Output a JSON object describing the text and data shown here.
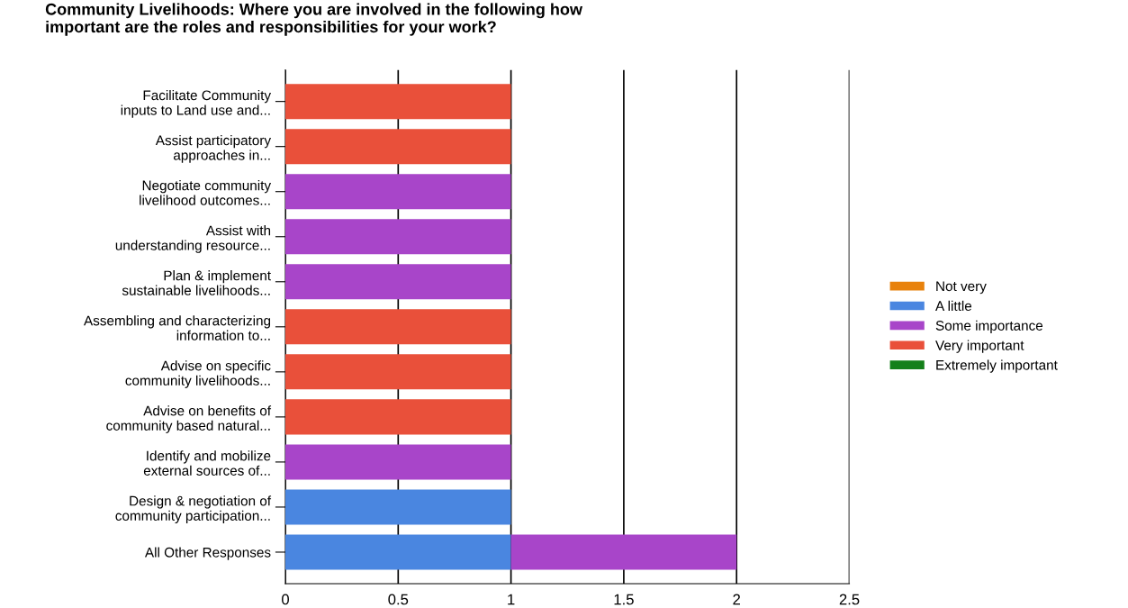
{
  "chart_data": {
    "type": "bar",
    "orientation": "horizontal",
    "stacked": true,
    "title": "Community Livelihoods: Where you are involved in the following how\nimportant are the roles and responsibilities for your work?",
    "categories": [
      "Facilitate Community\ninputs to Land use and...",
      "Assist participatory\napproaches in...",
      "Negotiate community\nlivelihood outcomes...",
      "Assist with\nunderstanding resource...",
      "Plan & implement\nsustainable livelihoods...",
      "Assembling and characterizing\ninformation to...",
      "Advise on specific\ncommunity livelihoods...",
      "Advise on benefits of\ncommunity based natural...",
      "Identify and mobilize\nexternal sources of...",
      "Design & negotiation of\ncommunity participation...",
      "All Other Responses"
    ],
    "series": [
      {
        "name": "Not very",
        "color": "#e8820c",
        "values": [
          null,
          null,
          null,
          null,
          null,
          null,
          null,
          null,
          null,
          null,
          null
        ]
      },
      {
        "name": "A little",
        "color": "#4a86e0",
        "values": [
          null,
          null,
          null,
          null,
          null,
          null,
          null,
          null,
          null,
          1,
          1
        ]
      },
      {
        "name": "Some importance",
        "color": "#a845c9",
        "values": [
          null,
          null,
          1,
          1,
          1,
          null,
          null,
          null,
          1,
          null,
          1
        ]
      },
      {
        "name": "Very important",
        "color": "#e9503a",
        "values": [
          1,
          1,
          null,
          null,
          null,
          1,
          1,
          1,
          null,
          null,
          null
        ]
      },
      {
        "name": "Extremely important",
        "color": "#14801a",
        "values": [
          null,
          null,
          null,
          null,
          null,
          null,
          null,
          null,
          null,
          null,
          null
        ]
      }
    ],
    "xlim": [
      0,
      2.5
    ],
    "xticks": [
      0,
      0.5,
      1,
      1.5,
      2,
      2.5
    ],
    "grid": "x",
    "legend": "right"
  }
}
